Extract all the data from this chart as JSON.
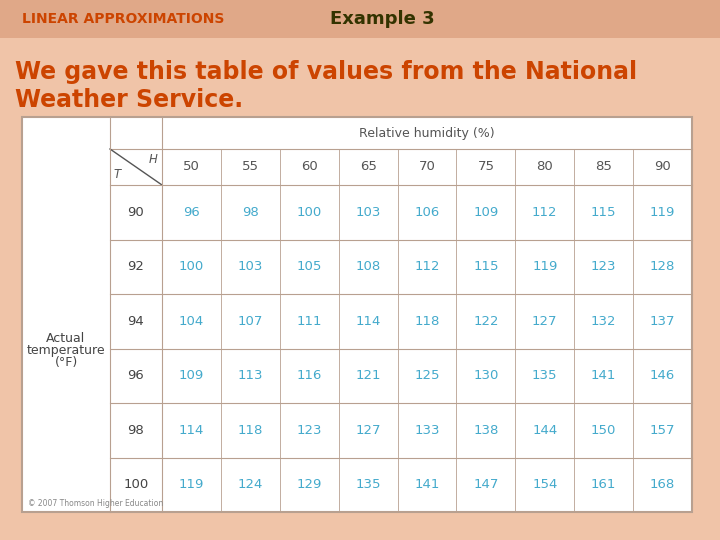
{
  "title_left": "LINEAR APPROXIMATIONS",
  "title_right": "Example 3",
  "body_text_line1": "We gave this table of values from the National",
  "body_text_line2": "Weather Service.",
  "bg_color": "#f0c4a8",
  "table_bg": "#ffffff",
  "table_border_color": "#b8a090",
  "header_text_color": "#555555",
  "data_text_color": "#44aacc",
  "row_label_color": "#444444",
  "title_left_color": "#cc4400",
  "title_right_color": "#333300",
  "body_text_color": "#cc4400",
  "copyright_text": "© 2007 Thomson Higher Education",
  "humidity_header": "Relative humidity (%)",
  "humidity_cols": [
    50,
    55,
    60,
    65,
    70,
    75,
    80,
    85,
    90
  ],
  "temp_rows": [
    90,
    92,
    94,
    96,
    98,
    100
  ],
  "row_label_title1": "Actual",
  "row_label_title2": "temperature",
  "row_label_title3": "(°F)",
  "table_data": [
    [
      96,
      98,
      100,
      103,
      106,
      109,
      112,
      115,
      119
    ],
    [
      100,
      103,
      105,
      108,
      112,
      115,
      119,
      123,
      128
    ],
    [
      104,
      107,
      111,
      114,
      118,
      122,
      127,
      132,
      137
    ],
    [
      109,
      113,
      116,
      121,
      125,
      130,
      135,
      141,
      146
    ],
    [
      114,
      118,
      123,
      127,
      133,
      138,
      144,
      150,
      157
    ],
    [
      119,
      124,
      129,
      135,
      141,
      147,
      154,
      161,
      168
    ]
  ],
  "header_bar_color": "#e0a888",
  "fig_width": 7.2,
  "fig_height": 5.4,
  "dpi": 100
}
